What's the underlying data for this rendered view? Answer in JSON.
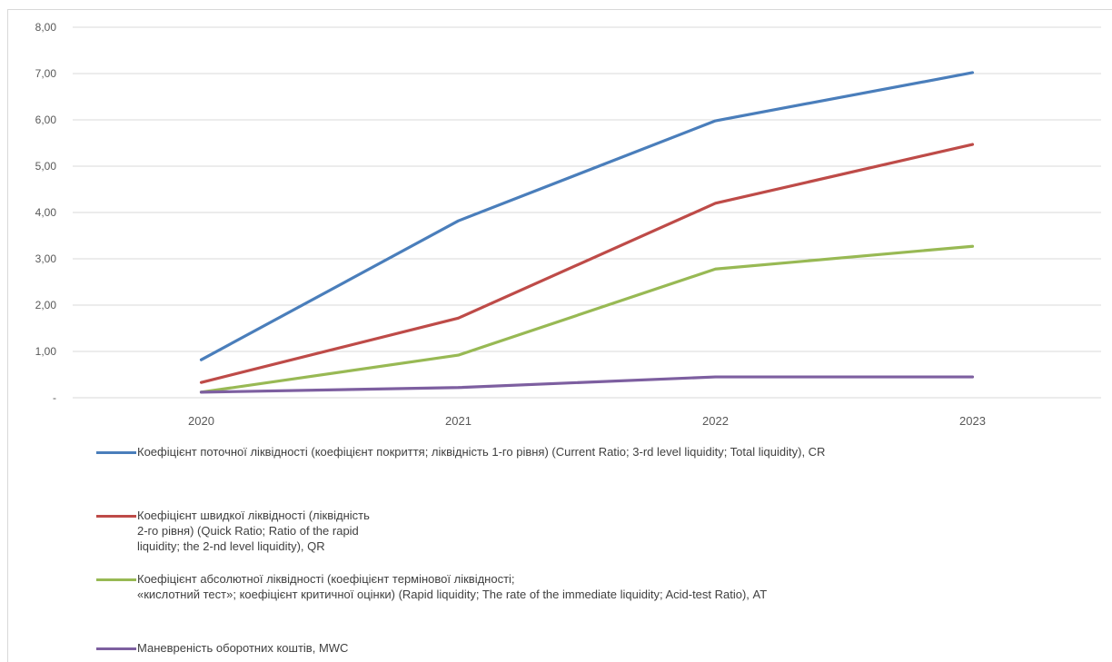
{
  "chart_data": {
    "type": "line",
    "title": "",
    "xlabel": "",
    "ylabel": "",
    "x": [
      "2020",
      "2021",
      "2022",
      "2023"
    ],
    "ylim": [
      0,
      8
    ],
    "yticks": [
      "-",
      "1,00",
      "2,00",
      "3,00",
      "4,00",
      "5,00",
      "6,00",
      "7,00",
      "8,00"
    ],
    "grid": true,
    "legend_position": "bottom",
    "series": [
      {
        "name": "Коефіцієнт поточної ліквідності (коефіцієнт покриття; ліквідність 1-го рівня) (Current Ratio; 3-rd level liquidity; Total liquidity), CR",
        "color": "#4a7ebb",
        "values": [
          0.82,
          3.82,
          5.98,
          7.02
        ]
      },
      {
        "name": "Коефіцієнт швидкої ліквідності (ліквідність\n2-го рівня) (Quick Ratio; Ratio of the rapid\nliquidity; the 2-nd level liquidity), QR",
        "color": "#be4b48",
        "values": [
          0.33,
          1.72,
          4.2,
          5.47
        ]
      },
      {
        "name": "Коефіцієнт абсолютної ліквідності (коефіцієнт термінової ліквідності;\n«кислотний тест»; коефіцієнт критичної оцінки) (Rapid liquidity; The rate of the immediate liquidity; Acid-test Ratio), AT",
        "color": "#98b954",
        "values": [
          0.12,
          0.92,
          2.78,
          3.27
        ]
      },
      {
        "name": "Маневреність оборотних коштів, MWC",
        "color": "#7d5fa0",
        "values": [
          0.12,
          0.22,
          0.45,
          0.45
        ]
      }
    ]
  }
}
